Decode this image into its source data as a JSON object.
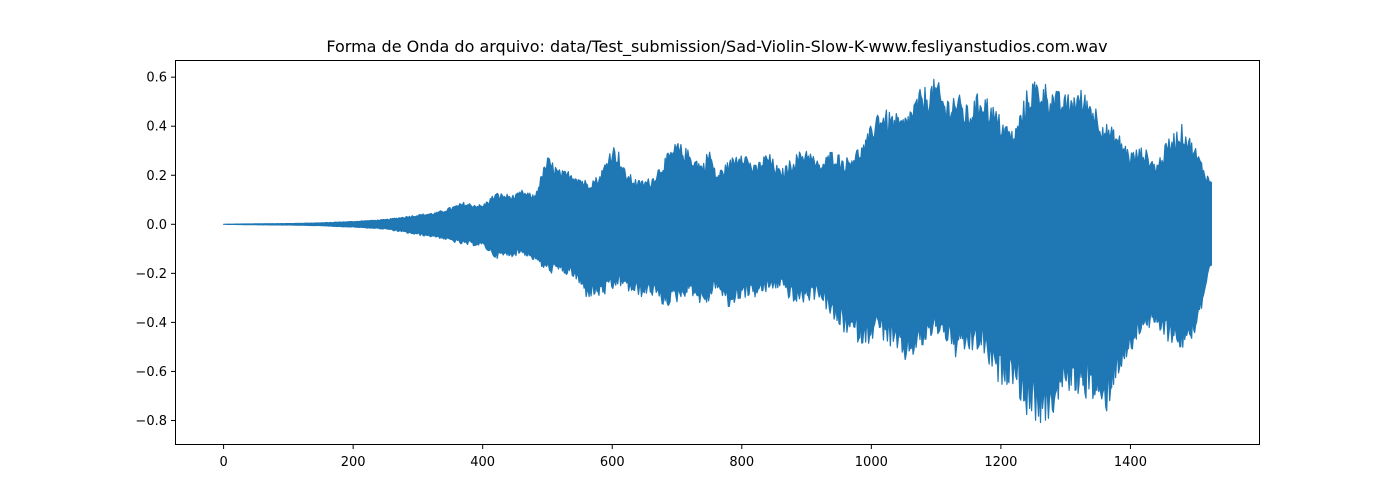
{
  "chart_data": {
    "type": "area",
    "title": "Forma de Onda do arquivo: data/Test_submission/Sad-Violin-Slow-K-www.fesliyanstudios.com.wav",
    "xlabel": "",
    "ylabel": "",
    "xlim": [
      -75,
      1600
    ],
    "ylim": [
      -0.9,
      0.67
    ],
    "x_ticks": [
      0,
      200,
      400,
      600,
      800,
      1000,
      1200,
      1400
    ],
    "x_tick_labels": [
      "0",
      "200",
      "400",
      "600",
      "800",
      "1000",
      "1200",
      "1400"
    ],
    "y_ticks": [
      0.6,
      0.4,
      0.2,
      0.0,
      -0.2,
      -0.4,
      -0.6,
      -0.8
    ],
    "y_tick_labels": [
      "0.6",
      "0.4",
      "0.2",
      "0.0",
      "−0.2",
      "−0.4",
      "−0.6",
      "−0.8"
    ],
    "grid": false,
    "legend": "none",
    "series": [
      {
        "color": "#1f77b4",
        "x": [
          0,
          50,
          100,
          150,
          200,
          250,
          300,
          330,
          370,
          400,
          420,
          450,
          460,
          480,
          500,
          520,
          540,
          560,
          580,
          600,
          610,
          620,
          640,
          660,
          680,
          700,
          720,
          740,
          750,
          760,
          780,
          800,
          820,
          840,
          860,
          880,
          900,
          920,
          940,
          960,
          990,
          1010,
          1050,
          1075,
          1100,
          1115,
          1130,
          1150,
          1170,
          1195,
          1220,
          1240,
          1250,
          1270,
          1285,
          1300,
          1320,
          1340,
          1360,
          1380,
          1400,
          1420,
          1440,
          1460,
          1480,
          1500,
          1510,
          1520,
          1525
        ],
        "upper": [
          0.0,
          0.002,
          0.003,
          0.006,
          0.012,
          0.02,
          0.04,
          0.05,
          0.09,
          0.08,
          0.13,
          0.12,
          0.14,
          0.12,
          0.28,
          0.22,
          0.22,
          0.18,
          0.2,
          0.33,
          0.3,
          0.22,
          0.18,
          0.19,
          0.27,
          0.34,
          0.3,
          0.25,
          0.32,
          0.21,
          0.26,
          0.32,
          0.24,
          0.3,
          0.22,
          0.28,
          0.32,
          0.25,
          0.31,
          0.27,
          0.34,
          0.48,
          0.44,
          0.55,
          0.6,
          0.52,
          0.55,
          0.48,
          0.56,
          0.46,
          0.38,
          0.55,
          0.6,
          0.58,
          0.55,
          0.53,
          0.56,
          0.52,
          0.42,
          0.38,
          0.3,
          0.32,
          0.25,
          0.36,
          0.41,
          0.32,
          0.26,
          0.2,
          0.19
        ],
        "lower": [
          0.0,
          -0.002,
          -0.003,
          -0.006,
          -0.012,
          -0.02,
          -0.045,
          -0.055,
          -0.085,
          -0.09,
          -0.14,
          -0.13,
          -0.12,
          -0.15,
          -0.2,
          -0.2,
          -0.22,
          -0.3,
          -0.3,
          -0.28,
          -0.25,
          -0.27,
          -0.3,
          -0.29,
          -0.34,
          -0.32,
          -0.28,
          -0.34,
          -0.32,
          -0.26,
          -0.35,
          -0.3,
          -0.3,
          -0.28,
          -0.26,
          -0.33,
          -0.32,
          -0.3,
          -0.4,
          -0.45,
          -0.5,
          -0.45,
          -0.57,
          -0.52,
          -0.45,
          -0.48,
          -0.55,
          -0.53,
          -0.52,
          -0.66,
          -0.65,
          -0.79,
          -0.8,
          -0.83,
          -0.76,
          -0.68,
          -0.7,
          -0.72,
          -0.8,
          -0.62,
          -0.55,
          -0.42,
          -0.45,
          -0.48,
          -0.52,
          -0.45,
          -0.35,
          -0.22,
          -0.2
        ]
      }
    ]
  }
}
